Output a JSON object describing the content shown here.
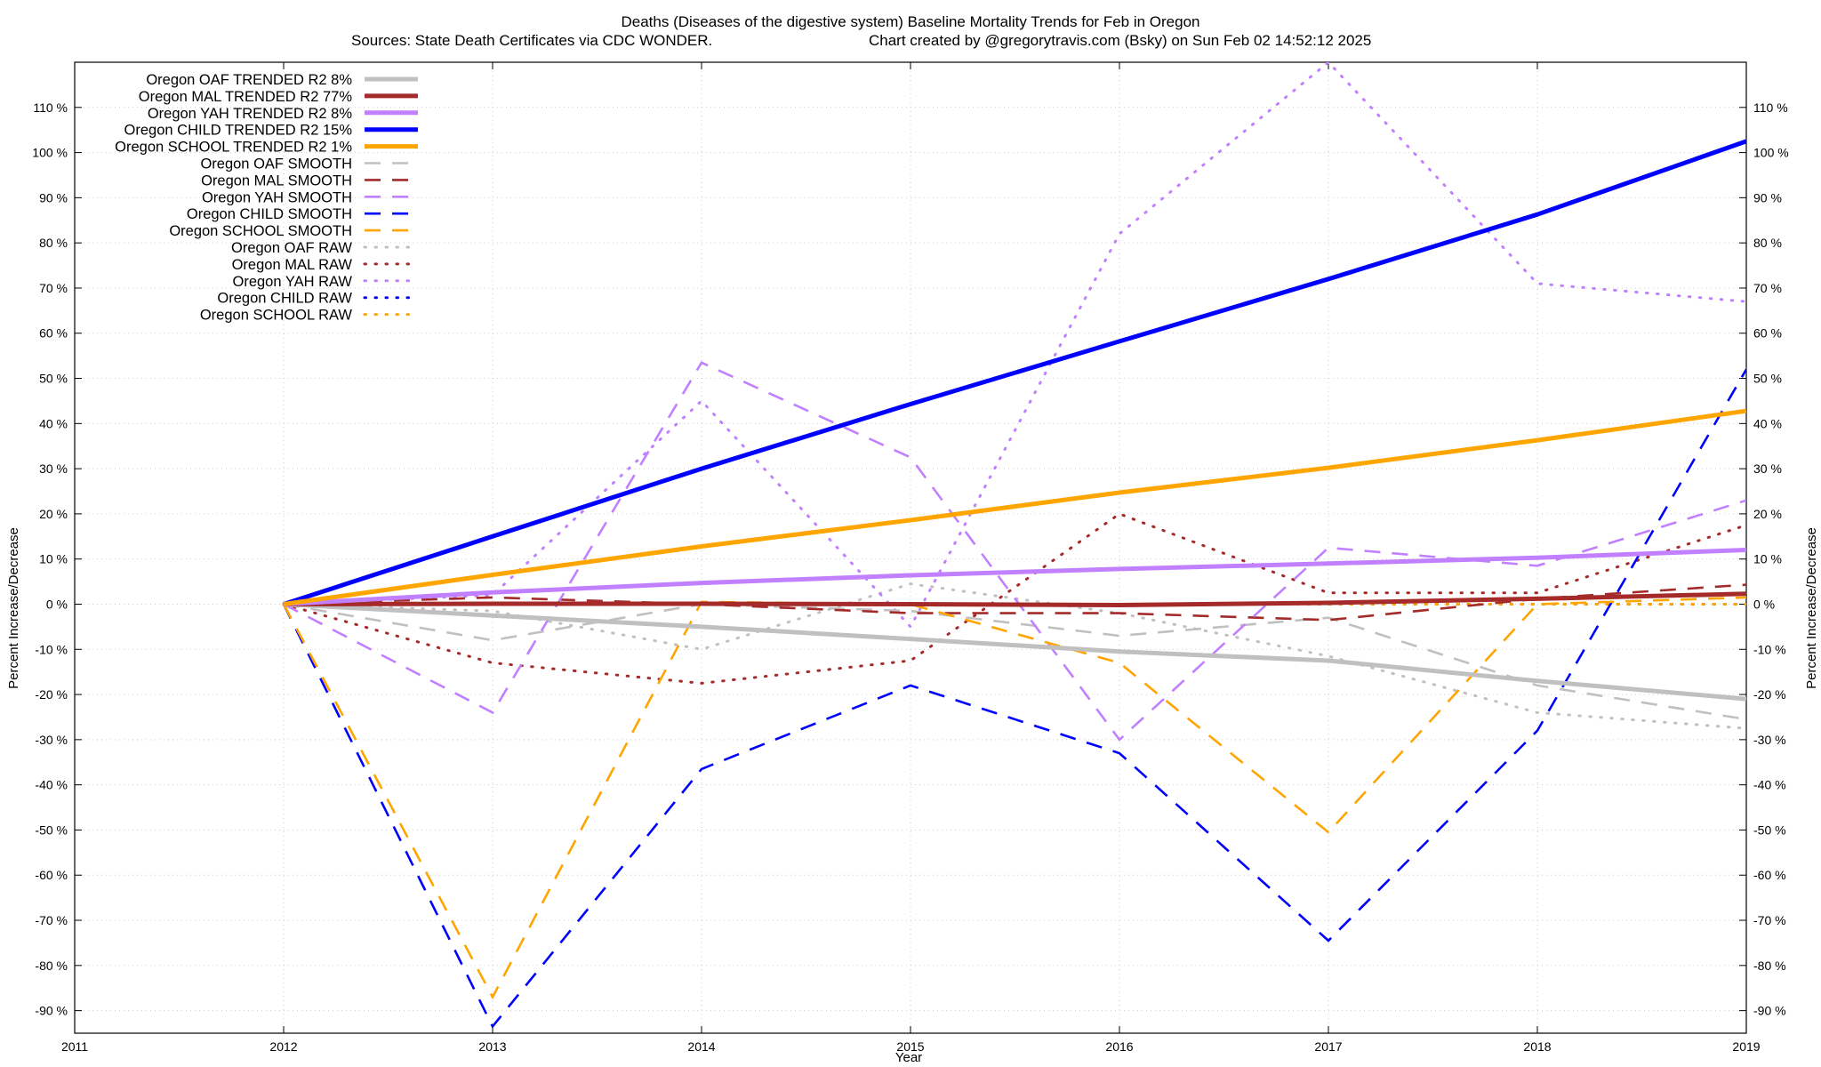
{
  "chart_data": {
    "type": "line",
    "title": "Deaths (Diseases of the digestive system)  Baseline Mortality Trends for Feb in Oregon",
    "subtitle_left": "Sources: State Death Certificates via CDC WONDER.",
    "subtitle_right": "Chart created by @gregorytravis.com (Bsky) on Sun Feb 02 14:52:12 2025",
    "xlabel": "Year",
    "ylabel": "Percent Increase/Decrease",
    "y2label": "Percent Increase/Decrease",
    "xlim": [
      2011,
      2019
    ],
    "ylim": [
      -95,
      120
    ],
    "x_ticks": [
      2011,
      2012,
      2013,
      2014,
      2015,
      2016,
      2017,
      2018,
      2019
    ],
    "x_tick_labels": [
      "2011",
      "2012",
      "2013",
      "2014",
      "2015",
      "2016",
      "2017",
      "2018",
      "2019"
    ],
    "y_ticks": [
      -90,
      -80,
      -70,
      -60,
      -50,
      -40,
      -30,
      -20,
      -10,
      0,
      10,
      20,
      30,
      40,
      50,
      60,
      70,
      80,
      90,
      100,
      110
    ],
    "y_tick_labels": [
      "-90 %",
      "-80 %",
      "-70 %",
      "-60 %",
      "-50 %",
      "-40 %",
      "-30 %",
      "-20 %",
      "-10 %",
      "0 %",
      "10 %",
      "20 %",
      "30 %",
      "40 %",
      "50 %",
      "60 %",
      "70 %",
      "80 %",
      "90 %",
      "100 %",
      "110 %"
    ],
    "grid": true,
    "legend_position": "top-left",
    "colors": {
      "oaf": "#c0c0c0",
      "mal": "#a52a2a",
      "yah": "#c080ff",
      "child": "#0000ff",
      "school": "#ffa500"
    },
    "series": [
      {
        "name": "Oregon OAF TRENDED R2  8%",
        "group": "oaf",
        "style": "trended",
        "x": [
          2012,
          2013,
          2014,
          2015,
          2016,
          2017,
          2018,
          2019
        ],
        "y": [
          0,
          -2.5,
          -5,
          -7.7,
          -10.5,
          -12.5,
          -17,
          -21
        ]
      },
      {
        "name": "Oregon MAL TRENDED R2  77%",
        "group": "mal",
        "style": "trended",
        "x": [
          2012,
          2013,
          2014,
          2015,
          2016,
          2017,
          2018,
          2019
        ],
        "y": [
          0,
          0.1,
          0.1,
          0,
          -0.2,
          0.3,
          1.2,
          2.3
        ]
      },
      {
        "name": "Oregon YAH TRENDED R2  8%",
        "group": "yah",
        "style": "trended",
        "x": [
          2012,
          2013,
          2014,
          2015,
          2016,
          2017,
          2018,
          2019
        ],
        "y": [
          0,
          2.6,
          4.7,
          6.4,
          7.8,
          9,
          10.3,
          12
        ]
      },
      {
        "name": "Oregon CHILD TRENDED R2  15%",
        "group": "child",
        "style": "trended",
        "x": [
          2012,
          2013,
          2014,
          2015,
          2016,
          2017,
          2018,
          2019
        ],
        "y": [
          0,
          15,
          30,
          44.3,
          58.2,
          72,
          86.3,
          102.5
        ]
      },
      {
        "name": "Oregon SCHOOL TRENDED R2  1%",
        "group": "school",
        "style": "trended",
        "x": [
          2012,
          2013,
          2014,
          2015,
          2016,
          2017,
          2018,
          2019
        ],
        "y": [
          0,
          6.5,
          12.8,
          18.6,
          24.7,
          30.2,
          36.3,
          42.8
        ]
      },
      {
        "name": "Oregon OAF SMOOTH",
        "group": "oaf",
        "style": "smooth",
        "x": [
          2012,
          2013,
          2014,
          2015,
          2016,
          2017,
          2018,
          2019
        ],
        "y": [
          0,
          -8,
          0,
          -1.5,
          -7,
          -3,
          -18,
          -25.5
        ]
      },
      {
        "name": "Oregon MAL SMOOTH",
        "group": "mal",
        "style": "smooth",
        "x": [
          2012,
          2013,
          2014,
          2015,
          2016,
          2017,
          2018,
          2019
        ],
        "y": [
          0,
          1.5,
          0,
          -2,
          -2,
          -3.5,
          1.2,
          4.3
        ]
      },
      {
        "name": "Oregon YAH SMOOTH",
        "group": "yah",
        "style": "smooth",
        "x": [
          2012,
          2013,
          2014,
          2015,
          2016,
          2017,
          2018,
          2019
        ],
        "y": [
          0,
          -24,
          53.5,
          32.5,
          -30,
          12.5,
          8.5,
          23
        ]
      },
      {
        "name": "Oregon CHILD SMOOTH",
        "group": "child",
        "style": "smooth",
        "x": [
          2012,
          2013,
          2014,
          2015,
          2016,
          2017,
          2018,
          2019
        ],
        "y": [
          0,
          -93.5,
          -36.5,
          -18,
          -33,
          -74.5,
          -28,
          52
        ]
      },
      {
        "name": "Oregon SCHOOL SMOOTH",
        "group": "school",
        "style": "smooth",
        "x": [
          2012,
          2013,
          2014,
          2015,
          2016,
          2017,
          2018,
          2019
        ],
        "y": [
          0,
          -87,
          0.5,
          0,
          -13,
          -50.5,
          0,
          1.5
        ]
      },
      {
        "name": "Oregon OAF RAW",
        "group": "oaf",
        "style": "raw",
        "x": [
          2012,
          2013,
          2014,
          2015,
          2016,
          2017,
          2018,
          2019
        ],
        "y": [
          0,
          -1.5,
          -10,
          4.5,
          -2,
          -11.5,
          -24,
          -27.5
        ]
      },
      {
        "name": "Oregon MAL RAW",
        "group": "mal",
        "style": "raw",
        "x": [
          2012,
          2013,
          2014,
          2015,
          2016,
          2017,
          2018,
          2019
        ],
        "y": [
          0,
          -13,
          -17.5,
          -12.5,
          20,
          2.5,
          2.5,
          17.5
        ]
      },
      {
        "name": "Oregon YAH RAW",
        "group": "yah",
        "style": "raw",
        "x": [
          2012,
          2013,
          2014,
          2015,
          2016,
          2017,
          2018,
          2019
        ],
        "y": [
          0,
          2,
          45,
          -5,
          82,
          120,
          71,
          67
        ]
      },
      {
        "name": "Oregon CHILD RAW",
        "group": "child",
        "style": "raw",
        "x": [
          2012,
          2013,
          2014,
          2015,
          2016,
          2017,
          2018,
          2019
        ],
        "y": [
          0,
          0,
          0,
          0,
          0,
          0,
          0,
          0
        ]
      },
      {
        "name": "Oregon SCHOOL RAW",
        "group": "school",
        "style": "raw",
        "x": [
          2012,
          2013,
          2014,
          2015,
          2016,
          2017,
          2018,
          2019
        ],
        "y": [
          0,
          0,
          0,
          0,
          0,
          0,
          0,
          0
        ]
      }
    ]
  }
}
